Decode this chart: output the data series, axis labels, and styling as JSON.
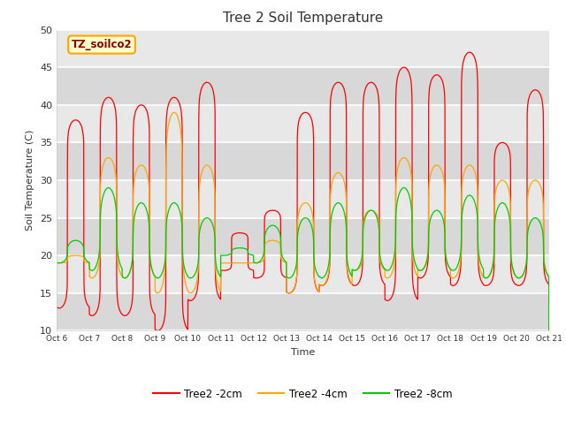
{
  "title": "Tree 2 Soil Temperature",
  "xlabel": "Time",
  "ylabel": "Soil Temperature (C)",
  "ylim": [
    10,
    50
  ],
  "xlim": [
    0,
    15
  ],
  "plot_bg": "#e8e8e8",
  "line_colors": {
    "2cm": "#ff0000",
    "4cm": "#ffa500",
    "8cm": "#00cc00"
  },
  "legend_labels": [
    "Tree2 -2cm",
    "Tree2 -4cm",
    "Tree2 -8cm"
  ],
  "annotation_text": "TZ_soilco2",
  "annotation_bg": "#ffffcc",
  "annotation_border": "#ffa500",
  "tick_labels": [
    "Oct 6",
    "Oct 7",
    "Oct 8",
    "Oct 9",
    "Oct 10",
    "Oct 11",
    "Oct 12",
    "Oct 13",
    "Oct 14",
    "Oct 15",
    "Oct 16",
    "Oct 17",
    "Oct 18",
    "Oct 19",
    "Oct 20",
    "Oct 21"
  ],
  "yticks": [
    10,
    15,
    20,
    25,
    30,
    35,
    40,
    45,
    50
  ],
  "day_peaks_2cm": [
    38,
    41,
    40,
    41,
    43,
    23,
    26,
    39,
    43,
    43,
    45,
    44,
    47,
    35,
    42
  ],
  "day_mins_2cm": [
    13,
    12,
    12,
    10,
    14,
    18,
    17,
    15,
    16,
    16,
    14,
    17,
    16,
    16,
    16
  ],
  "day_peaks_4cm": [
    20,
    33,
    32,
    39,
    32,
    19,
    22,
    27,
    31,
    26,
    33,
    32,
    32,
    30,
    30
  ],
  "day_mins_4cm": [
    19,
    17,
    17,
    15,
    15,
    19,
    19,
    15,
    16,
    18,
    17,
    18,
    17,
    17,
    17
  ],
  "day_peaks_8cm": [
    22,
    29,
    27,
    27,
    25,
    21,
    24,
    25,
    27,
    26,
    29,
    26,
    28,
    27,
    25
  ],
  "day_mins_8cm": [
    19,
    18,
    17,
    17,
    17,
    20,
    19,
    17,
    17,
    18,
    18,
    18,
    18,
    17,
    17
  ]
}
